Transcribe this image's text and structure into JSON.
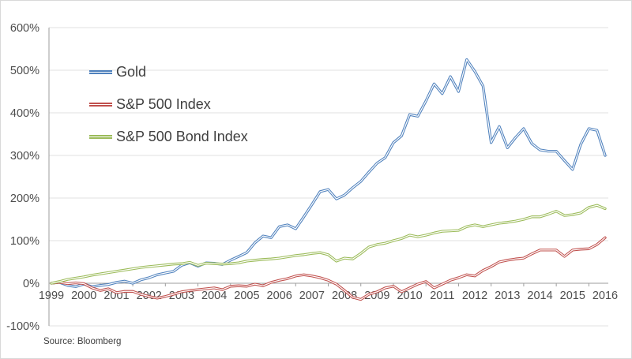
{
  "figure": {
    "source_note": "Source: Bloomberg",
    "background": "#ffffff",
    "border_color": "#d9d9d9"
  },
  "style": {
    "grid_color": "#e2e2e2",
    "axis_color": "#9e9e9e",
    "tick_label_color": "#4d4d4d",
    "legend_text_color": "#404040",
    "line_inner_stripe": "#ffffff"
  },
  "chart_data": {
    "type": "line",
    "title": "",
    "xlabel": "",
    "ylabel": "",
    "legend_position": "upper-left-inside",
    "grid": true,
    "x_axis": {
      "tick_labels": [
        "1999",
        "2000",
        "2001",
        "2002",
        "2003",
        "2004",
        "2005",
        "2006",
        "2007",
        "2008",
        "2009",
        "2010",
        "2011",
        "2012",
        "2013",
        "2014",
        "2015",
        "2016"
      ],
      "range": [
        1999,
        2016
      ]
    },
    "y_axis": {
      "tick_labels": [
        "600%",
        "500%",
        "400%",
        "300%",
        "200%",
        "100%",
        "0%",
        "-100%"
      ],
      "tick_values": [
        600,
        500,
        400,
        300,
        200,
        100,
        0,
        -100
      ],
      "range": [
        -100,
        600
      ],
      "unit": "percent"
    },
    "x_start": 1999,
    "x_step_years": 0.25,
    "series": [
      {
        "name": "Gold",
        "color": "#4f81bd",
        "values": [
          0,
          2,
          -5,
          -8,
          -2,
          -8,
          -5,
          -3,
          2,
          5,
          0,
          8,
          13,
          20,
          24,
          28,
          42,
          48,
          40,
          48,
          47,
          44,
          54,
          63,
          72,
          95,
          111,
          107,
          133,
          137,
          128,
          156,
          185,
          215,
          220,
          198,
          207,
          224,
          239,
          261,
          282,
          295,
          330,
          346,
          396,
          392,
          428,
          468,
          445,
          485,
          450,
          525,
          497,
          463,
          330,
          368,
          318,
          342,
          363,
          328,
          313,
          310,
          310,
          288,
          267,
          326,
          363,
          359,
          300
        ]
      },
      {
        "name": "S&P 500 Index",
        "color": "#c0504d",
        "values": [
          0,
          2,
          -1,
          1,
          -1,
          -11,
          -17,
          -13,
          -22,
          -19,
          -19,
          -26,
          -31,
          -35,
          -31,
          -26,
          -20,
          -17,
          -15,
          -13,
          -11,
          -15,
          -7,
          -6,
          -7,
          -2,
          -6,
          2,
          7,
          11,
          17,
          20,
          17,
          13,
          7,
          -2,
          -17,
          -33,
          -38,
          -26,
          -20,
          -11,
          -7,
          -20,
          -11,
          -2,
          4,
          -11,
          -2,
          7,
          13,
          20,
          17,
          30,
          39,
          50,
          54,
          57,
          59,
          69,
          78,
          78,
          78,
          63,
          78,
          80,
          81,
          91,
          107
        ]
      },
      {
        "name": "S&P 500 Bond Index",
        "color": "#9bbb59",
        "values": [
          0,
          4,
          9,
          12,
          15,
          19,
          22,
          25,
          28,
          31,
          34,
          37,
          39,
          41,
          43,
          45,
          46,
          49,
          42,
          47,
          46,
          45,
          46,
          48,
          52,
          54,
          56,
          57,
          59,
          62,
          65,
          67,
          70,
          72,
          67,
          52,
          59,
          57,
          70,
          85,
          91,
          94,
          100,
          105,
          113,
          109,
          113,
          118,
          122,
          123,
          124,
          133,
          137,
          133,
          137,
          141,
          143,
          146,
          150,
          156,
          156,
          162,
          169,
          159,
          161,
          165,
          178,
          183,
          175
        ]
      }
    ]
  }
}
